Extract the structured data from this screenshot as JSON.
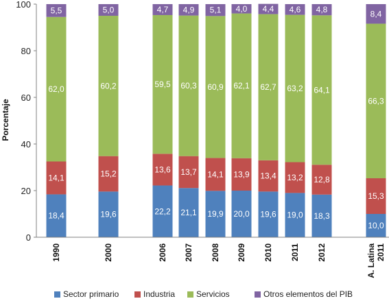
{
  "chart_data": {
    "type": "bar",
    "stacked": true,
    "categories": [
      "1990",
      "2000",
      "2006",
      "2007",
      "2008",
      "2009",
      "2010",
      "2011",
      "2012",
      "A. Latina 2011"
    ],
    "series": [
      {
        "name": "Sector primario",
        "color": "#4f81bd",
        "values": [
          18.4,
          19.6,
          22.2,
          21.1,
          19.9,
          20.0,
          19.6,
          19.0,
          18.3,
          10.0
        ],
        "labels": [
          "18,4",
          "19,6",
          "22,2",
          "21,1",
          "19,9",
          "20,0",
          "19,6",
          "19,0",
          "18,3",
          "10,0"
        ]
      },
      {
        "name": "Industria",
        "color": "#c0504d",
        "values": [
          14.1,
          15.2,
          13.6,
          13.7,
          14.1,
          13.9,
          13.4,
          13.2,
          12.8,
          15.3
        ],
        "labels": [
          "14,1",
          "15,2",
          "13,6",
          "13,7",
          "14,1",
          "13,9",
          "13,4",
          "13,2",
          "12,8",
          "15,3"
        ]
      },
      {
        "name": "Servicios",
        "color": "#9bbb59",
        "values": [
          62.0,
          60.2,
          59.5,
          60.3,
          60.9,
          62.1,
          62.7,
          63.2,
          64.1,
          66.3
        ],
        "labels": [
          "62,0",
          "60,2",
          "59,5",
          "60,3",
          "60,9",
          "62,1",
          "62,7",
          "63,2",
          "64,1",
          "66,3"
        ]
      },
      {
        "name": "Otros elementos del PIB",
        "color": "#8064a2",
        "values": [
          5.5,
          5.0,
          4.7,
          4.9,
          5.1,
          4.0,
          4.4,
          4.6,
          4.8,
          8.4
        ],
        "labels": [
          "5,5",
          "5,0",
          "4,7",
          "4,9",
          "5,1",
          "4,0",
          "4,4",
          "4,6",
          "4,8",
          "8,4"
        ]
      }
    ],
    "xlabel": "",
    "ylabel": "Porcentaje",
    "ylim": [
      0,
      100
    ],
    "yticks": [
      0,
      20,
      40,
      60,
      80,
      100
    ],
    "grid": false,
    "legend_position": "bottom"
  }
}
